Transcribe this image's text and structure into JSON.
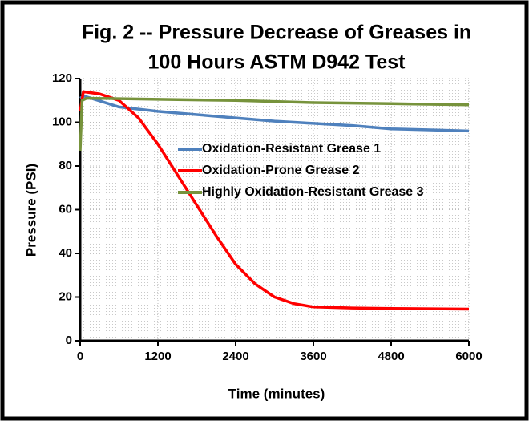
{
  "chart_data": {
    "type": "line",
    "title": [
      "Fig. 2 -- Pressure Decrease of Greases in",
      "100 Hours ASTM D942 Test"
    ],
    "x_label": "Time (minutes)",
    "y_label": "Pressure (PSI)",
    "xlim": [
      0,
      6000
    ],
    "xticks": [
      0,
      1200,
      2400,
      3600,
      4800,
      6000
    ],
    "ylim": [
      0,
      120
    ],
    "yticks": [
      0,
      20,
      40,
      60,
      80,
      100,
      120
    ],
    "grid": true,
    "legend": "center",
    "series": [
      {
        "name": "Oxidation-Resistant Grease 1",
        "color": "#4f81bd",
        "x": [
          0,
          60,
          600,
          1200,
          1800,
          2400,
          3000,
          3600,
          4200,
          4800,
          5400,
          6000
        ],
        "values": [
          111,
          112,
          107,
          105,
          103.5,
          102,
          100.5,
          99.5,
          98.5,
          97,
          96.5,
          96
        ]
      },
      {
        "name": "Oxidation-Prone Grease 2",
        "color": "#ff0000",
        "x": [
          0,
          50,
          300,
          600,
          900,
          1200,
          1500,
          1800,
          2100,
          2400,
          2700,
          3000,
          3300,
          3600,
          4200,
          4800,
          6000
        ],
        "values": [
          105,
          114,
          113,
          110,
          102,
          90,
          76,
          62,
          48,
          35,
          26,
          20,
          17,
          15.5,
          15,
          14.8,
          14.5
        ]
      },
      {
        "name": "Highly Oxidation-Resistant Grease 3",
        "color": "#77933c",
        "x": [
          0,
          30,
          100,
          1200,
          2400,
          3600,
          4800,
          6000
        ],
        "values": [
          87,
          110,
          111,
          110.5,
          110,
          109,
          108.5,
          108
        ]
      }
    ]
  }
}
